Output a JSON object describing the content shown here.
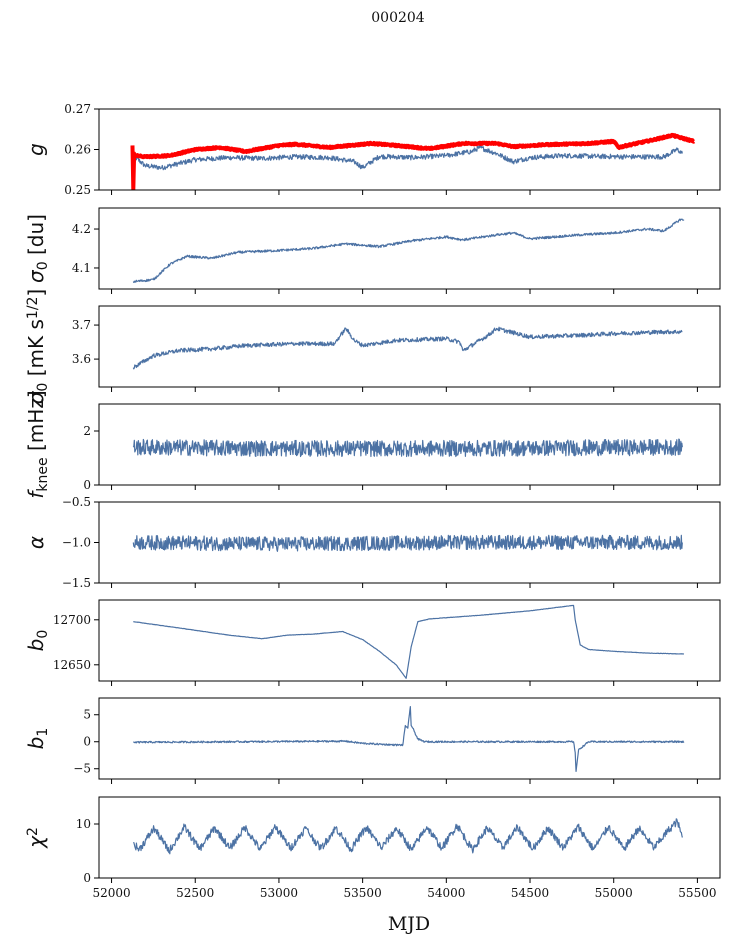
{
  "chart_data": {
    "type": "line",
    "title": "000204",
    "xlabel": "MJD",
    "xlim": [
      51925,
      55635
    ],
    "xticks": [
      52000,
      52500,
      53000,
      53500,
      54000,
      54500,
      55000,
      55500
    ],
    "grid": false,
    "panels": [
      {
        "ylabel": [
          {
            "t": "g",
            "s": "it"
          }
        ],
        "ylim": [
          0.25,
          0.27
        ],
        "yticks": [
          0.25,
          0.26,
          0.27
        ],
        "ytick_labels": [
          "0.25",
          "0.26",
          "0.27"
        ],
        "series": [
          {
            "name": "g",
            "color": "#4c72a4",
            "width": 1.2,
            "noise": 0.0006,
            "x": [
              52130,
              52200,
              52300,
              52400,
              52500,
              52700,
              52900,
              53100,
              53300,
              53450,
              53500,
              53600,
              53800,
              54000,
              54150,
              54200,
              54300,
              54400,
              54500,
              54700,
              54900,
              55100,
              55300,
              55380,
              55410
            ],
            "y": [
              0.2585,
              0.256,
              0.2555,
              0.2565,
              0.2575,
              0.258,
              0.2578,
              0.2582,
              0.258,
              0.257,
              0.2555,
              0.2583,
              0.258,
              0.2585,
              0.2595,
              0.2605,
              0.259,
              0.257,
              0.258,
              0.2585,
              0.2583,
              0.2582,
              0.2582,
              0.26,
              0.259
            ]
          },
          {
            "name": "reference g",
            "color": "#ff0000",
            "width": 4,
            "noise": 0.0002,
            "x": [
              52125,
              52130,
              52135,
              52140,
              52200,
              52350,
              52500,
              52650,
              52800,
              53000,
              53100,
              53300,
              53550,
              53700,
              53900,
              54100,
              54300,
              54400,
              54600,
              54850,
              55000,
              55030,
              55080,
              55250,
              55350,
              55480
            ],
            "y": [
              0.261,
              0.25,
              0.259,
              0.2585,
              0.2582,
              0.2585,
              0.26,
              0.2605,
              0.2595,
              0.261,
              0.2613,
              0.2605,
              0.2615,
              0.261,
              0.2602,
              0.2615,
              0.2615,
              0.2607,
              0.2612,
              0.2615,
              0.262,
              0.2605,
              0.261,
              0.2625,
              0.2635,
              0.262
            ]
          }
        ]
      },
      {
        "ylabel": [
          {
            "t": "σ",
            "s": "it"
          },
          {
            "t": "0",
            "s": "sub"
          },
          {
            "t": " [du]",
            "s": "n"
          }
        ],
        "ylim": [
          4.046,
          4.254
        ],
        "yticks": [
          4.1,
          4.2
        ],
        "ytick_labels": [
          "4.1",
          "4.2"
        ],
        "series": [
          {
            "name": "sigma0 du",
            "color": "#4c72a4",
            "width": 1.2,
            "noise": 0.003,
            "x": [
              52130,
              52250,
              52350,
              52450,
              52600,
              52750,
              53000,
              53200,
              53400,
              53600,
              53800,
              54000,
              54100,
              54300,
              54400,
              54500,
              54800,
              55000,
              55200,
              55300,
              55400,
              55420
            ],
            "y": [
              4.065,
              4.07,
              4.11,
              4.13,
              4.125,
              4.14,
              4.145,
              4.15,
              4.162,
              4.155,
              4.17,
              4.18,
              4.172,
              4.185,
              4.19,
              4.175,
              4.185,
              4.19,
              4.2,
              4.195,
              4.225,
              4.222
            ]
          }
        ]
      },
      {
        "ylabel": [
          {
            "t": "σ",
            "s": "it"
          },
          {
            "t": "0",
            "s": "sub"
          },
          {
            "t": " [mK s",
            "s": "n"
          },
          {
            "t": "1/2",
            "s": "sup"
          },
          {
            "t": "]",
            "s": "n"
          }
        ],
        "ylim": [
          3.518,
          3.756
        ],
        "yticks": [
          3.6,
          3.7
        ],
        "ytick_labels": [
          "3.6",
          "3.7"
        ],
        "series": [
          {
            "name": "sigma0 mK",
            "color": "#4c72a4",
            "width": 1.2,
            "noise": 0.006,
            "x": [
              52130,
              52250,
              52400,
              52600,
              52800,
              53100,
              53330,
              53400,
              53450,
              53500,
              53700,
              54000,
              54080,
              54100,
              54250,
              54300,
              54500,
              54800,
              55000,
              55300,
              55410
            ],
            "y": [
              3.575,
              3.61,
              3.625,
              3.63,
              3.64,
              3.645,
              3.645,
              3.69,
              3.655,
              3.64,
              3.655,
              3.66,
              3.65,
              3.625,
              3.67,
              3.69,
              3.665,
              3.67,
              3.675,
              3.68,
              3.68
            ]
          }
        ]
      },
      {
        "ylabel": [
          {
            "t": "f",
            "s": "it"
          },
          {
            "t": "knee",
            "s": "sub"
          },
          {
            "t": " [mHz]",
            "s": "n"
          }
        ],
        "ylim": [
          0,
          3.0
        ],
        "yticks": [
          0,
          2
        ],
        "ytick_labels": [
          "0",
          "2"
        ],
        "series": [
          {
            "name": "fknee",
            "color": "#4c72a4",
            "width": 1.2,
            "noise": 0.3,
            "x": [
              52130,
              53000,
              54000,
              55410
            ],
            "y": [
              1.4,
              1.35,
              1.35,
              1.4
            ]
          }
        ]
      },
      {
        "ylabel": [
          {
            "t": "α",
            "s": "it"
          }
        ],
        "ylim": [
          -1.5,
          -0.5
        ],
        "yticks": [
          -1.5,
          -1.0,
          -0.5
        ],
        "ytick_labels": [
          "−1.5",
          "−1.0",
          "−0.5"
        ],
        "series": [
          {
            "name": "alpha",
            "color": "#4c72a4",
            "width": 1.2,
            "noise": 0.09,
            "x": [
              52130,
              53000,
              54000,
              55410
            ],
            "y": [
              -1.0,
              -1.02,
              -1.0,
              -1.0
            ]
          }
        ]
      },
      {
        "ylabel": [
          {
            "t": "b",
            "s": "it"
          },
          {
            "t": "0",
            "s": "sub"
          }
        ],
        "ylim": [
          12632,
          12722
        ],
        "yticks": [
          12650,
          12700
        ],
        "ytick_labels": [
          "12650",
          "12700"
        ],
        "series": [
          {
            "name": "b0",
            "color": "#4c72a4",
            "width": 1.2,
            "noise": 0.2,
            "x": [
              52130,
              52400,
              52700,
              52900,
              53050,
              53200,
              53380,
              53500,
              53600,
              53700,
              53760,
              53790,
              53830,
              53900,
              54200,
              54500,
              54760,
              54770,
              54800,
              54850,
              55000,
              55200,
              55420
            ],
            "y": [
              12698,
              12691,
              12683,
              12679,
              12683,
              12684,
              12687,
              12678,
              12665,
              12650,
              12635,
              12670,
              12698,
              12701,
              12705,
              12710,
              12716,
              12700,
              12672,
              12667,
              12665,
              12663,
              12662
            ]
          }
        ]
      },
      {
        "ylabel": [
          {
            "t": "b",
            "s": "it"
          },
          {
            "t": "1",
            "s": "sub"
          }
        ],
        "ylim": [
          -6.9,
          8.1
        ],
        "yticks": [
          -5,
          0,
          5
        ],
        "ytick_labels": [
          "−5",
          "0",
          "5"
        ],
        "series": [
          {
            "name": "b1",
            "color": "#4c72a4",
            "width": 1.2,
            "noise": 0.15,
            "x": [
              52130,
              53400,
              53500,
              53700,
              53740,
              53755,
              53770,
              53785,
              53790,
              53800,
              53830,
              53870,
              54760,
              54770,
              54775,
              54790,
              54850,
              55420
            ],
            "y": [
              -0.1,
              0.1,
              -0.3,
              -0.6,
              -0.6,
              3.0,
              2.5,
              6.5,
              3.0,
              2.5,
              0.5,
              0.0,
              0.0,
              -2.0,
              -5.5,
              -1.5,
              0.0,
              0.0
            ]
          }
        ]
      },
      {
        "ylabel": [
          {
            "t": "χ",
            "s": "it"
          },
          {
            "t": "2",
            "s": "sup"
          }
        ],
        "ylim": [
          0,
          15
        ],
        "yticks": [
          0,
          10
        ],
        "ytick_labels": [
          "0",
          "10"
        ],
        "series": [
          {
            "name": "chi2",
            "color": "#4c72a4",
            "width": 1.2,
            "noise": 0.7,
            "x": [
              52130,
              52164,
              52254,
              52345,
              52435,
              52526,
              52616,
              52707,
              52797,
              52888,
              52978,
              53069,
              53159,
              53250,
              53340,
              53431,
              53521,
              53612,
              53702,
              53793,
              53883,
              53974,
              54064,
              54155,
              54245,
              54336,
              54426,
              54517,
              54607,
              54698,
              54788,
              54879,
              54969,
              55060,
              55150,
              55241,
              55331,
              55380,
              55410
            ],
            "y": [
              6.5,
              5.2,
              9.2,
              5.0,
              9.5,
              5.3,
              9.3,
              5.5,
              9.4,
              5.3,
              9.5,
              5.5,
              9.2,
              5.4,
              9.3,
              5.3,
              9.4,
              5.6,
              9.2,
              5.2,
              9.5,
              5.5,
              9.8,
              5.2,
              9.3,
              5.6,
              9.4,
              5.4,
              9.3,
              5.6,
              9.5,
              5.3,
              9.5,
              5.4,
              9.2,
              5.6,
              9.0,
              10.5,
              7.5
            ]
          }
        ]
      }
    ]
  }
}
